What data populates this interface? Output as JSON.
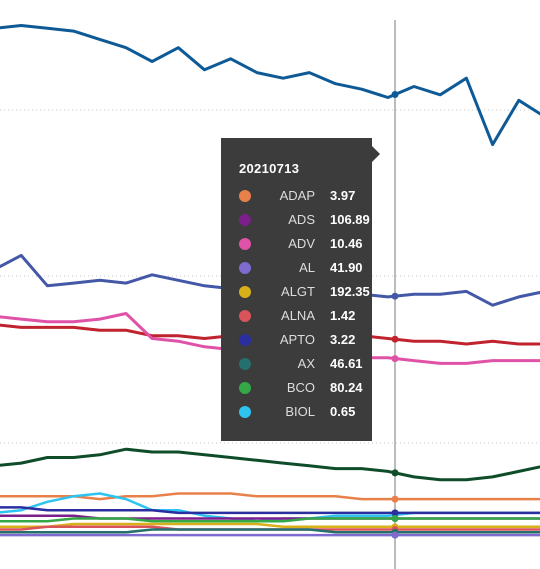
{
  "tooltip": {
    "title": "20210713",
    "items": [
      {
        "name": "ADAP",
        "value": "3.97",
        "color": "#e8804a"
      },
      {
        "name": "ADS",
        "value": "106.89",
        "color": "#7b1f8a"
      },
      {
        "name": "ADV",
        "value": "10.46",
        "color": "#e052a8"
      },
      {
        "name": "AL",
        "value": "41.90",
        "color": "#7f6ad0"
      },
      {
        "name": "ALGT",
        "value": "192.35",
        "color": "#d8b01a"
      },
      {
        "name": "ALNA",
        "value": "1.42",
        "color": "#d9535b"
      },
      {
        "name": "APTO",
        "value": "3.22",
        "color": "#2a2ea0"
      },
      {
        "name": "AX",
        "value": "46.61",
        "color": "#25706e"
      },
      {
        "name": "BCO",
        "value": "80.24",
        "color": "#34a846"
      },
      {
        "name": "BIOL",
        "value": "0.65",
        "color": "#2ec4f0"
      }
    ]
  },
  "chart_data": {
    "type": "line",
    "hover_date": "20210713",
    "grid": "horizontal dotted",
    "series": [
      {
        "color": "#0e5a96",
        "values": [
          192,
          193,
          192,
          191,
          188,
          185,
          180,
          185,
          177,
          181,
          176,
          174,
          176,
          172,
          170,
          167,
          171,
          168,
          174,
          150,
          166,
          160
        ]
      },
      {
        "color": "#4458a8",
        "values": [
          105,
          110,
          99,
          100,
          101,
          100,
          103,
          101,
          99,
          98,
          97,
          97,
          96,
          96,
          96,
          95,
          96,
          96,
          97,
          92,
          95,
          97
        ]
      },
      {
        "color": "#c0232e",
        "values": [
          85,
          84,
          84,
          84,
          83,
          83,
          81,
          81,
          80,
          81,
          80,
          80,
          80,
          81,
          81,
          80,
          79,
          79,
          78,
          79,
          78,
          78
        ]
      },
      {
        "color": "#e052a8",
        "values": [
          88,
          87,
          86,
          86,
          87,
          89,
          80,
          79,
          77,
          76,
          75,
          74,
          74,
          73,
          73,
          73,
          72,
          71,
          71,
          72,
          72,
          72
        ]
      },
      {
        "color": "#0f4d2a",
        "values": [
          34,
          35,
          37,
          37,
          38,
          40,
          39,
          39,
          38,
          37,
          36,
          35,
          34,
          33,
          33,
          32,
          30,
          29,
          29,
          30,
          32,
          34
        ]
      },
      {
        "color": "#e8804a",
        "values": [
          23,
          23,
          23,
          23,
          22,
          23,
          23,
          24,
          24,
          24,
          23,
          23,
          23,
          23,
          22,
          22,
          22,
          22,
          22,
          22,
          22,
          22
        ]
      },
      {
        "color": "#2ec4f0",
        "values": [
          17,
          18,
          21,
          23,
          24,
          22,
          18,
          18,
          16,
          15,
          14,
          15,
          15,
          16,
          16,
          16,
          17,
          17,
          17,
          17,
          17,
          17
        ]
      },
      {
        "color": "#2a2ea0",
        "values": [
          19,
          19,
          18,
          18,
          18,
          18,
          18,
          17,
          17,
          17,
          17,
          17,
          17,
          17,
          17,
          17,
          17,
          17,
          17,
          17,
          17,
          17
        ]
      },
      {
        "color": "#7b1f8a",
        "values": [
          16,
          16,
          16,
          16,
          15,
          15,
          15,
          15,
          15,
          15,
          15,
          15,
          15,
          15,
          15,
          15,
          15,
          15,
          15,
          15,
          15,
          15
        ]
      },
      {
        "color": "#34a846",
        "values": [
          14,
          14,
          14,
          15,
          15,
          15,
          14,
          14,
          14,
          14,
          14,
          14,
          15,
          15,
          15,
          15,
          15,
          15,
          15,
          15,
          15,
          15
        ]
      },
      {
        "color": "#d8b01a",
        "values": [
          12,
          12,
          12,
          13,
          13,
          13,
          13,
          13,
          13,
          13,
          13,
          12,
          12,
          12,
          12,
          12,
          12,
          12,
          12,
          12,
          12,
          12
        ]
      },
      {
        "color": "#d9535b",
        "values": [
          11,
          11,
          12,
          12,
          12,
          12,
          12,
          11,
          11,
          11,
          11,
          11,
          11,
          11,
          11,
          11,
          11,
          11,
          11,
          11,
          11,
          11
        ]
      },
      {
        "color": "#25706e",
        "values": [
          10,
          10,
          10,
          10,
          10,
          10,
          11,
          11,
          11,
          11,
          11,
          11,
          11,
          10,
          10,
          10,
          10,
          10,
          10,
          10,
          10,
          10
        ]
      },
      {
        "color": "#7f6ad0",
        "values": [
          9,
          9,
          9,
          9,
          9,
          9,
          9,
          9,
          9,
          9,
          9,
          9,
          9,
          9,
          9,
          9,
          9,
          9,
          9,
          9,
          9,
          9
        ]
      }
    ]
  }
}
